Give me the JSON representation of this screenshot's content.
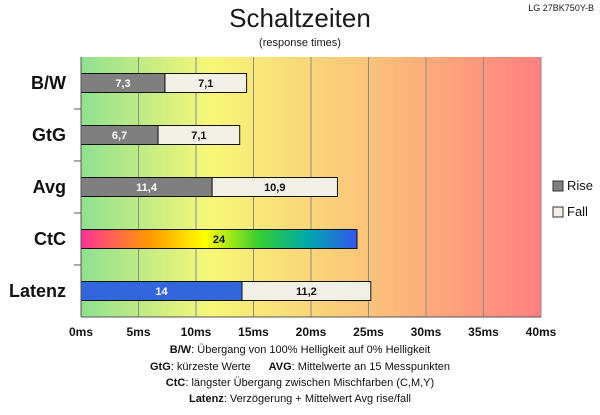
{
  "chart_data": {
    "type": "bar",
    "orientation": "horizontal",
    "stacked": true,
    "title": "Schaltzeiten",
    "subtitle": "(response times)",
    "model": "LG 27BK750Y-B",
    "categories": [
      "B/W",
      "GtG",
      "Avg",
      "CtC",
      "Latenz"
    ],
    "x_ticks": [
      "0ms",
      "5ms",
      "10ms",
      "15ms",
      "20ms",
      "25ms",
      "30ms",
      "35ms",
      "40ms"
    ],
    "xlim": [
      0,
      40
    ],
    "grid": true,
    "legend_position": "right",
    "series": [
      {
        "name": "Rise",
        "values": [
          7.3,
          6.7,
          11.4,
          24,
          14
        ],
        "labels": [
          "7,3",
          "6,7",
          "11,4",
          "24",
          "14"
        ]
      },
      {
        "name": "Fall",
        "values": [
          7.1,
          7.1,
          10.9,
          null,
          11.2
        ],
        "labels": [
          "7,1",
          "7,1",
          "10,9",
          "",
          "11,2"
        ]
      }
    ],
    "colors": {
      "rise": "#7f7f7f",
      "fall": "#f2f0e6",
      "latenz_rise": "#3366dd",
      "ctc_gradient": [
        "#ff3399",
        "#ff9900",
        "#ffff00",
        "#33cc33",
        "#00aaaa",
        "#3355ee"
      ],
      "background_gradient": [
        "#8fe08f",
        "#f7f777",
        "#fbc47a",
        "#ff7f7f"
      ]
    }
  },
  "notes": [
    {
      "key": "B/W",
      "text": ":  Übergang von 100% Helligkeit auf 0% Helligkeit"
    },
    {
      "key": "GtG",
      "text": ": kürzeste  Werte",
      "key2": "AVG",
      "text2": ": Mittelwerte  an 15 Messpunkten"
    },
    {
      "key": "CtC",
      "text": ": längster Übergang  zwischen Mischfarben (C,M,Y)"
    },
    {
      "key": "Latenz",
      "text": ": Verzögerung  + Mittelwert Avg rise/fall"
    }
  ]
}
